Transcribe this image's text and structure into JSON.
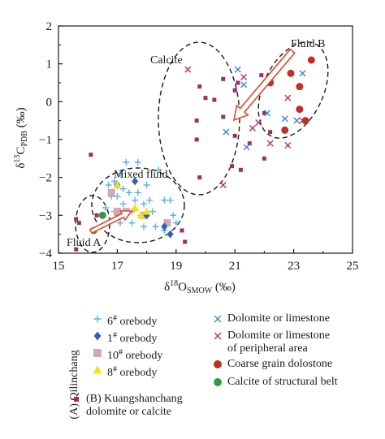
{
  "chart_data": {
    "type": "scatter",
    "title": "",
    "xlabel": "δ18OSMOW (‰)",
    "ylabel": "δ13CPDB (‰)",
    "xlim": [
      15,
      25
    ],
    "ylim": [
      -4,
      2
    ],
    "xticks": [
      "15",
      "17",
      "19",
      "21",
      "23",
      "25"
    ],
    "yticks": [
      "2",
      "1",
      "0",
      "−1",
      "−2",
      "−3",
      "−4"
    ],
    "grid": false,
    "legend_placement": "below",
    "annotations": [
      "Calcite",
      "Fluid B",
      "Mixed fluid",
      "Fluid A"
    ],
    "colors": {
      "ore_6": "#5fb0e6",
      "ore_1": "#2e62b0",
      "ore_10": "#d0a7b3",
      "ore_8": "#f4e219",
      "dolomite": "#3e86d4",
      "dolomite_peripheral": "#b2326d",
      "coarse": "#c22d26",
      "calcite_belt": "#2e9b3d",
      "kuang": "#9d2d6b",
      "arrow": "#e2462d"
    },
    "series": [
      {
        "name": "6# orebody",
        "marker": "plus",
        "color": "#5fb0e6",
        "points": [
          [
            16.6,
            -2.8
          ],
          [
            16.7,
            -2.2
          ],
          [
            16.8,
            -2.5
          ],
          [
            16.9,
            -2.9
          ],
          [
            17.0,
            -3.0
          ],
          [
            17.0,
            -2.5
          ],
          [
            17.1,
            -3.2
          ],
          [
            17.1,
            -1.9
          ],
          [
            17.2,
            -2.7
          ],
          [
            17.3,
            -3.0
          ],
          [
            17.3,
            -1.6
          ],
          [
            17.4,
            -2.4
          ],
          [
            17.5,
            -2.9
          ],
          [
            17.5,
            -3.2
          ],
          [
            17.6,
            -2.6
          ],
          [
            17.7,
            -1.6
          ],
          [
            17.7,
            -2.4
          ],
          [
            17.8,
            -3.0
          ],
          [
            17.9,
            -2.7
          ],
          [
            17.9,
            -3.3
          ],
          [
            18.0,
            -2.2
          ],
          [
            18.1,
            -2.6
          ],
          [
            18.2,
            -2.9
          ],
          [
            18.3,
            -3.3
          ],
          [
            18.4,
            -1.8
          ],
          [
            18.6,
            -2.6
          ],
          [
            18.6,
            -3.4
          ],
          [
            18.8,
            -2.6
          ],
          [
            19.0,
            -3.2
          ],
          [
            18.9,
            -3.0
          ],
          [
            17.2,
            -2.3
          ],
          [
            16.9,
            -2.1
          ]
        ]
      },
      {
        "name": "1# orebody",
        "marker": "diamond",
        "color": "#2e62b0",
        "points": [
          [
            17.0,
            -2.2
          ],
          [
            17.6,
            -2.1
          ],
          [
            18.0,
            -3.0
          ],
          [
            18.6,
            -3.3
          ],
          [
            18.8,
            -3.5
          ]
        ]
      },
      {
        "name": "10# orebody",
        "marker": "square",
        "color": "#d0a7b3",
        "points": [
          [
            16.8,
            -2.4
          ],
          [
            17.0,
            -2.9
          ],
          [
            17.3,
            -2.9
          ],
          [
            17.9,
            -3.0
          ],
          [
            18.7,
            -3.2
          ]
        ]
      },
      {
        "name": "8# orebody",
        "marker": "triangle",
        "color": "#f4e219",
        "points": [
          [
            17.0,
            -2.2
          ],
          [
            17.6,
            -2.8
          ],
          [
            17.8,
            -3.0
          ],
          [
            18.0,
            -2.9
          ]
        ]
      },
      {
        "name": "Dolomite or limestone",
        "marker": "x",
        "color": "#3e86d4",
        "points": [
          [
            20.7,
            -0.8
          ],
          [
            21.1,
            0.85
          ],
          [
            21.3,
            0.45
          ],
          [
            21.4,
            -1.2
          ],
          [
            22.1,
            -0.3
          ],
          [
            22.7,
            -0.45
          ],
          [
            23.1,
            -0.5
          ],
          [
            23.3,
            0.75
          ]
        ]
      },
      {
        "name": "Dolomite or limestone of peripheral area",
        "marker": "x",
        "color": "#b2326d",
        "points": [
          [
            19.4,
            0.85
          ],
          [
            20.6,
            -2.2
          ],
          [
            21.3,
            0.65
          ],
          [
            21.6,
            -0.7
          ],
          [
            21.8,
            -0.55
          ],
          [
            22.2,
            -1.1
          ],
          [
            22.8,
            0.1
          ],
          [
            22.8,
            -1.15
          ],
          [
            23.3,
            -0.5
          ]
        ]
      },
      {
        "name": "Coarse grain dolostone",
        "marker": "circle",
        "color": "#c22d26",
        "points": [
          [
            22.2,
            0.5
          ],
          [
            22.9,
            0.75
          ],
          [
            23.2,
            0.4
          ],
          [
            23.6,
            1.1
          ],
          [
            23.2,
            -0.2
          ],
          [
            22.7,
            -0.75
          ],
          [
            23.4,
            -0.5
          ]
        ]
      },
      {
        "name": "Calcite of structural belt",
        "marker": "circle",
        "color": "#2e9b3d",
        "points": [
          [
            16.5,
            -3.0
          ],
          [
            16.2,
            -3.4
          ]
        ]
      },
      {
        "name": "Kuangshanchang dolomite or calcite",
        "marker": "smallsquare",
        "color": "#9d2d6b",
        "points": [
          [
            15.6,
            -3.1
          ],
          [
            15.7,
            -3.2
          ],
          [
            15.6,
            -3.9
          ],
          [
            16.1,
            -1.4
          ],
          [
            19.2,
            -3.4
          ],
          [
            19.7,
            -1.0
          ],
          [
            19.8,
            -2.0
          ],
          [
            19.7,
            -0.5
          ],
          [
            19.8,
            0.4
          ],
          [
            20.0,
            0.1
          ],
          [
            20.3,
            0.05
          ],
          [
            20.6,
            0.6
          ],
          [
            20.6,
            -0.4
          ],
          [
            20.9,
            -1.7
          ],
          [
            21.0,
            0.3
          ],
          [
            21.0,
            -0.9
          ],
          [
            21.1,
            0.5
          ],
          [
            21.2,
            -1.8
          ],
          [
            21.4,
            -0.1
          ],
          [
            21.5,
            -1.1
          ],
          [
            21.9,
            0.7
          ],
          [
            22.0,
            -0.3
          ],
          [
            22.2,
            -0.8
          ],
          [
            22.0,
            -1.5
          ],
          [
            19.3,
            -3.7
          ],
          [
            16.3,
            -3.0
          ]
        ]
      }
    ]
  },
  "legend": {
    "group_a": "(A) Qilinchang",
    "left_items": [
      {
        "pre": "6",
        "sup": "#",
        "post": " orebody",
        "marker": "plus",
        "color": "#5fb0e6"
      },
      {
        "pre": "1",
        "sup": "#",
        "post": " orebody",
        "marker": "diamond",
        "color": "#2e62b0"
      },
      {
        "pre": "10",
        "sup": "#",
        "post": " orebody",
        "marker": "square",
        "color": "#d0a7b3"
      },
      {
        "pre": "8",
        "sup": "#",
        "post": " orebody",
        "marker": "triangle",
        "color": "#f4e219"
      }
    ],
    "right_items": [
      {
        "text": "Dolomite or limestone",
        "marker": "x",
        "color": "#3e86d4"
      },
      {
        "text": "Dolomite or limestone",
        "line2": "of peripheral area",
        "marker": "x",
        "color": "#b2326d"
      },
      {
        "text": "Coarse grain dolostone",
        "marker": "circle",
        "color": "#c22d26"
      },
      {
        "text": "Calcite of structural belt",
        "marker": "circle",
        "color": "#2e9b3d"
      }
    ],
    "group_b": {
      "text": "(B) Kuangshanchang",
      "line2": "dolomite or calcite",
      "marker": "smallsquare",
      "color": "#9d2d6b"
    }
  }
}
